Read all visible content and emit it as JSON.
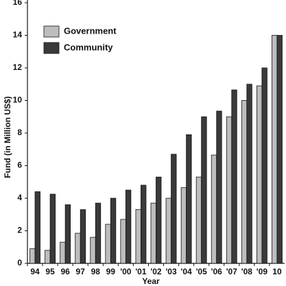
{
  "chart_data": {
    "type": "bar",
    "x_label": "Year",
    "y_label": "Fund (in Million US$)",
    "categories": [
      "94",
      "95",
      "96",
      "97",
      "98",
      "99",
      "'00",
      "'01",
      "'02",
      "'03",
      "'04",
      "'05",
      "'06",
      "'07",
      "'08",
      "'09",
      "10"
    ],
    "series": [
      {
        "name": "Government",
        "color": "#bdbdbd",
        "values": [
          0.9,
          0.8,
          1.3,
          1.85,
          1.6,
          2.4,
          2.7,
          3.3,
          3.7,
          4.0,
          4.65,
          5.3,
          6.65,
          9.0,
          10.0,
          10.9,
          14.0
        ]
      },
      {
        "name": "Community",
        "color": "#3a3a3a",
        "values": [
          4.4,
          4.25,
          3.6,
          3.3,
          3.7,
          4.0,
          4.5,
          4.8,
          5.3,
          6.7,
          7.9,
          9.0,
          9.35,
          10.65,
          11.0,
          12.0,
          14.0
        ]
      }
    ],
    "ylim": [
      0,
      16
    ],
    "yticks": [
      0,
      2,
      4,
      6,
      8,
      10,
      12,
      14,
      16
    ],
    "legend": "upper left"
  }
}
